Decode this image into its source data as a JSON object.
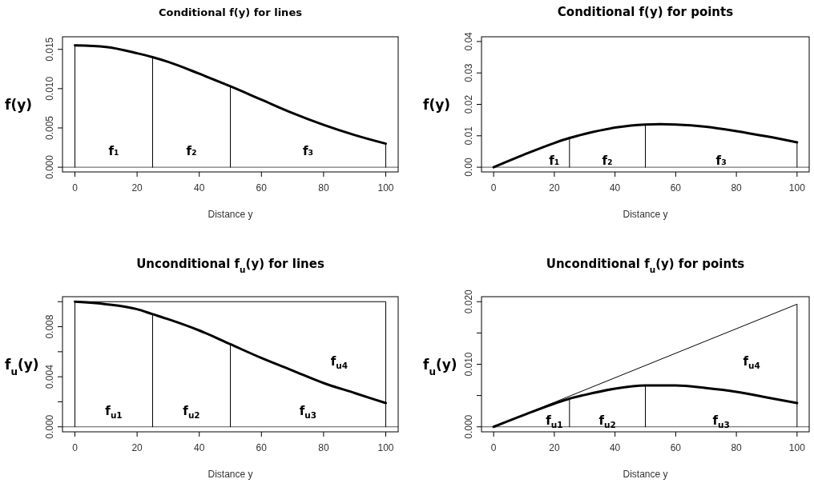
{
  "chart_data": [
    {
      "type": "line",
      "title": "Conditional f(y) for lines",
      "xlabel": "Distance y",
      "ylabel": "f(y)",
      "xlim": [
        -4,
        104
      ],
      "xticks": [
        0,
        20,
        40,
        60,
        80,
        100
      ],
      "ylim": [
        -0.0006,
        0.0166
      ],
      "yticks": [
        {
          "value": 0,
          "label": "0.000"
        },
        {
          "value": 0.005,
          "label": "0.005"
        },
        {
          "value": 0.01,
          "label": "0.010"
        },
        {
          "value": 0.015,
          "label": "0.015"
        }
      ],
      "marker": "none",
      "line_style": "solid",
      "series": [
        {
          "color": "#000000",
          "x": [
            0,
            10,
            20,
            25,
            30,
            40,
            50,
            60,
            70,
            80,
            90,
            100
          ],
          "values": [
            0.0155,
            0.0153,
            0.0145,
            0.014,
            0.0134,
            0.0119,
            0.0103,
            0.0086,
            0.0069,
            0.0054,
            0.0041,
            0.003
          ]
        },
        {
          "color": "#000000",
          "x": [
            0,
            0
          ],
          "values": [
            0,
            0.0155
          ]
        },
        {
          "color": "#000000",
          "x": [
            25,
            25
          ],
          "values": [
            0,
            0.014
          ]
        },
        {
          "color": "#000000",
          "x": [
            50,
            50
          ],
          "values": [
            0,
            0.0103
          ]
        },
        {
          "color": "#000000",
          "x": [
            100,
            100
          ],
          "values": [
            0,
            0.003
          ]
        }
      ],
      "ref_lines": [
        {
          "axis": "y",
          "value": 0,
          "color": "#555555"
        }
      ],
      "annotations": [
        "f₁",
        "f₂",
        "f₃"
      ]
    },
    {
      "type": "line",
      "title": "Conditional f(y) for points",
      "xlabel": "Distance y",
      "ylabel": "f(y)",
      "xlim": [
        -4,
        104
      ],
      "xticks": [
        0,
        20,
        40,
        60,
        80,
        100
      ],
      "ylim": [
        -0.0015,
        0.0415
      ],
      "yticks": [
        {
          "value": 0,
          "label": "0.00"
        },
        {
          "value": 0.01,
          "label": "0.01"
        },
        {
          "value": 0.02,
          "label": "0.02"
        },
        {
          "value": 0.03,
          "label": "0.03"
        },
        {
          "value": 0.04,
          "label": "0.04"
        }
      ],
      "marker": "none",
      "line_style": "solid",
      "series": [
        {
          "color": "#000000",
          "x": [
            0,
            10,
            20,
            25,
            30,
            40,
            50,
            55,
            60,
            70,
            80,
            90,
            100
          ],
          "values": [
            0,
            0.004,
            0.0077,
            0.0093,
            0.0106,
            0.0126,
            0.0136,
            0.0137,
            0.0136,
            0.0129,
            0.0115,
            0.0098,
            0.0079
          ]
        },
        {
          "color": "#000000",
          "x": [
            25,
            25
          ],
          "values": [
            0,
            0.0093
          ]
        },
        {
          "color": "#000000",
          "x": [
            50,
            50
          ],
          "values": [
            0,
            0.0136
          ]
        },
        {
          "color": "#000000",
          "x": [
            100,
            100
          ],
          "values": [
            0,
            0.0079
          ]
        }
      ],
      "ref_lines": [
        {
          "axis": "y",
          "value": 0,
          "color": "#555555"
        }
      ],
      "annotations": [
        "f₁",
        "f₂",
        "f₃"
      ]
    },
    {
      "type": "line",
      "title": "Unconditional f$_{u}$(y) for lines",
      "xlabel": "Distance y",
      "ylabel": "f$_{u}$(y)",
      "xlim": [
        -4,
        104
      ],
      "xticks": [
        0,
        20,
        40,
        60,
        80,
        100
      ],
      "ylim": [
        -0.0004,
        0.0104
      ],
      "yticks": [
        {
          "value": 0,
          "label": "0.000"
        },
        {
          "value": 0.002,
          "label": null
        },
        {
          "value": 0.004,
          "label": "0.004"
        },
        {
          "value": 0.006,
          "label": null
        },
        {
          "value": 0.008,
          "label": "0.008"
        },
        {
          "value": 0.01,
          "label": null
        }
      ],
      "marker": "none",
      "line_style": "solid",
      "series": [
        {
          "color": "#000000",
          "x": [
            0,
            10,
            20,
            25,
            30,
            40,
            50,
            60,
            70,
            80,
            90,
            100
          ],
          "values": [
            0.01,
            0.0098,
            0.0094,
            0.009,
            0.0086,
            0.0077,
            0.0066,
            0.0055,
            0.0045,
            0.0035,
            0.0027,
            0.0019
          ]
        },
        {
          "color": "#000000",
          "x": [
            0,
            0,
            100,
            100
          ],
          "values": [
            0,
            0.01,
            0.01,
            0
          ]
        },
        {
          "color": "#000000",
          "x": [
            25,
            25
          ],
          "values": [
            0,
            0.009
          ]
        },
        {
          "color": "#000000",
          "x": [
            50,
            50
          ],
          "values": [
            0,
            0.0066
          ]
        }
      ],
      "ref_lines": [
        {
          "axis": "y",
          "value": 0,
          "color": "#555555"
        }
      ],
      "annotations": [
        "f$_{u1}$",
        "f$_{u2}$",
        "f$_{u3}$",
        "f$_{u4}$"
      ]
    },
    {
      "type": "line",
      "title": "Unconditional f$_{u}$(y) for points",
      "xlabel": "Distance y",
      "ylabel": "f$_{u}$(y)",
      "xlim": [
        -4,
        104
      ],
      "xticks": [
        0,
        20,
        40,
        60,
        80,
        100
      ],
      "ylim": [
        -0.0008,
        0.0208
      ],
      "yticks": [
        {
          "value": 0,
          "label": "0.000"
        },
        {
          "value": 0.005,
          "label": null
        },
        {
          "value": 0.01,
          "label": "0.010"
        },
        {
          "value": 0.015,
          "label": null
        },
        {
          "value": 0.02,
          "label": "0.020"
        }
      ],
      "marker": "none",
      "line_style": "solid",
      "series": [
        {
          "color": "#000000",
          "x": [
            0,
            10,
            20,
            25,
            30,
            40,
            50,
            55,
            60,
            70,
            80,
            90,
            100
          ],
          "values": [
            0,
            0.0019,
            0.0037,
            0.0045,
            0.0051,
            0.0061,
            0.0066,
            0.0066,
            0.0066,
            0.0062,
            0.0056,
            0.0047,
            0.0038
          ]
        },
        {
          "color": "#000000",
          "x": [
            0,
            100,
            100
          ],
          "values": [
            0,
            0.0196,
            0
          ]
        },
        {
          "color": "#000000",
          "x": [
            25,
            25
          ],
          "values": [
            0,
            0.0045
          ]
        },
        {
          "color": "#000000",
          "x": [
            50,
            50
          ],
          "values": [
            0,
            0.0066
          ]
        }
      ],
      "ref_lines": [
        {
          "axis": "y",
          "value": 0,
          "color": "#555555"
        }
      ],
      "annotations": [
        "f$_{u1}$",
        "f$_{u2}$",
        "f$_{u3}$",
        "f$_{u4}$"
      ]
    }
  ]
}
